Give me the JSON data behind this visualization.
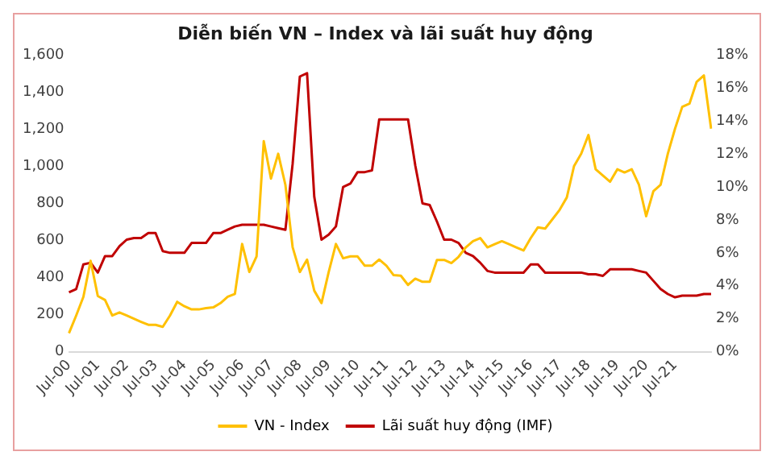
{
  "chart_data": {
    "type": "line",
    "title": "Diễn biến VN – Index và lãi suất huy động",
    "categories": [
      "Jul-00",
      null,
      null,
      null,
      "Jul-01",
      null,
      null,
      null,
      "Jul-02",
      null,
      null,
      null,
      "Jul-03",
      null,
      null,
      null,
      "Jul-04",
      null,
      null,
      null,
      "Jul-05",
      null,
      null,
      null,
      "Jul-06",
      null,
      null,
      null,
      "Jul-07",
      null,
      null,
      null,
      "Jul-08",
      null,
      null,
      null,
      "Jul-09",
      null,
      null,
      null,
      "Jul-10",
      null,
      null,
      null,
      "Jul-11",
      null,
      null,
      null,
      "Jul-12",
      null,
      null,
      null,
      "Jul-13",
      null,
      null,
      null,
      "Jul-14",
      null,
      null,
      null,
      "Jul-15",
      null,
      null,
      null,
      "Jul-16",
      null,
      null,
      null,
      "Jul-17",
      null,
      null,
      null,
      "Jul-18",
      null,
      null,
      null,
      "Jul-19",
      null,
      null,
      null,
      "Jul-20",
      null,
      null,
      null,
      "Jul-21",
      null,
      null,
      null,
      null,
      null
    ],
    "series": [
      {
        "name": "VN - Index",
        "color": "#ffc000",
        "values": [
          100,
          195,
          296,
          490,
          300,
          279,
          195,
          212,
          195,
          178,
          161,
          145,
          145,
          134,
          195,
          269,
          245,
          228,
          228,
          235,
          239,
          262,
          296,
          312,
          581,
          430,
          514,
          1136,
          934,
          1068,
          900,
          564,
          430,
          497,
          329,
          262,
          430,
          581,
          504,
          514,
          514,
          464,
          464,
          497,
          464,
          413,
          410,
          360,
          394,
          377,
          377,
          495,
          495,
          478,
          512,
          563,
          596,
          613,
          563,
          580,
          596,
          580,
          563,
          546,
          613,
          671,
          664,
          714,
          765,
          832,
          1001,
          1068,
          1169,
          984,
          950,
          917,
          984,
          967,
          984,
          900,
          731,
          866,
          900,
          1068,
          1203,
          1321,
          1338,
          1456,
          1490,
          1203
        ]
      },
      {
        "name": "Lãi suất huy động (IMF)",
        "color": "#c00000",
        "axis": "y2",
        "values": [
          3.6,
          3.8,
          5.3,
          5.4,
          4.8,
          5.8,
          5.8,
          6.4,
          6.8,
          6.9,
          6.9,
          7.2,
          7.2,
          6.1,
          6.0,
          6.0,
          6.0,
          6.6,
          6.6,
          6.6,
          7.2,
          7.2,
          7.4,
          7.6,
          7.7,
          7.7,
          7.7,
          7.7,
          7.6,
          7.5,
          7.4,
          11.4,
          16.7,
          16.9,
          9.4,
          6.8,
          7.1,
          7.6,
          10.0,
          10.2,
          10.9,
          10.9,
          11.0,
          14.1,
          14.1,
          14.1,
          14.1,
          14.1,
          11.3,
          9.0,
          8.9,
          7.9,
          6.8,
          6.8,
          6.6,
          6.0,
          5.8,
          5.4,
          4.9,
          4.8,
          4.8,
          4.8,
          4.8,
          4.8,
          5.3,
          5.3,
          4.8,
          4.8,
          4.8,
          4.8,
          4.8,
          4.8,
          4.7,
          4.7,
          4.6,
          5.0,
          5.0,
          5.0,
          5.0,
          4.9,
          4.8,
          4.3,
          3.8,
          3.5,
          3.3,
          3.4,
          3.4,
          3.4,
          3.5,
          3.5
        ]
      }
    ],
    "ylim": [
      0,
      1600
    ],
    "yticks": [
      0,
      200,
      400,
      {
        "value": 600,
        "label": "600"
      },
      {
        "value": 800,
        "label": "800"
      },
      {
        "value": 1000,
        "label": "1,000"
      },
      {
        "value": 1200,
        "label": "1,200"
      },
      {
        "value": 1400,
        "label": "1,400"
      },
      {
        "value": 1600,
        "label": "1,600"
      }
    ],
    "y2lim": [
      0,
      18
    ],
    "y2ticks": [
      {
        "value": 0,
        "label": "0%"
      },
      {
        "value": 2,
        "label": "2%"
      },
      {
        "value": 4,
        "label": "4%"
      },
      {
        "value": 6,
        "label": "6%"
      },
      {
        "value": 8,
        "label": "8%"
      },
      {
        "value": 10,
        "label": "10%"
      },
      {
        "value": 12,
        "label": "12%"
      },
      {
        "value": 14,
        "label": "14%"
      },
      {
        "value": 16,
        "label": "16%"
      },
      {
        "value": 18,
        "label": "18%"
      }
    ],
    "grid": false,
    "legend": "bottom",
    "marker": "none",
    "line_style": "solid"
  }
}
